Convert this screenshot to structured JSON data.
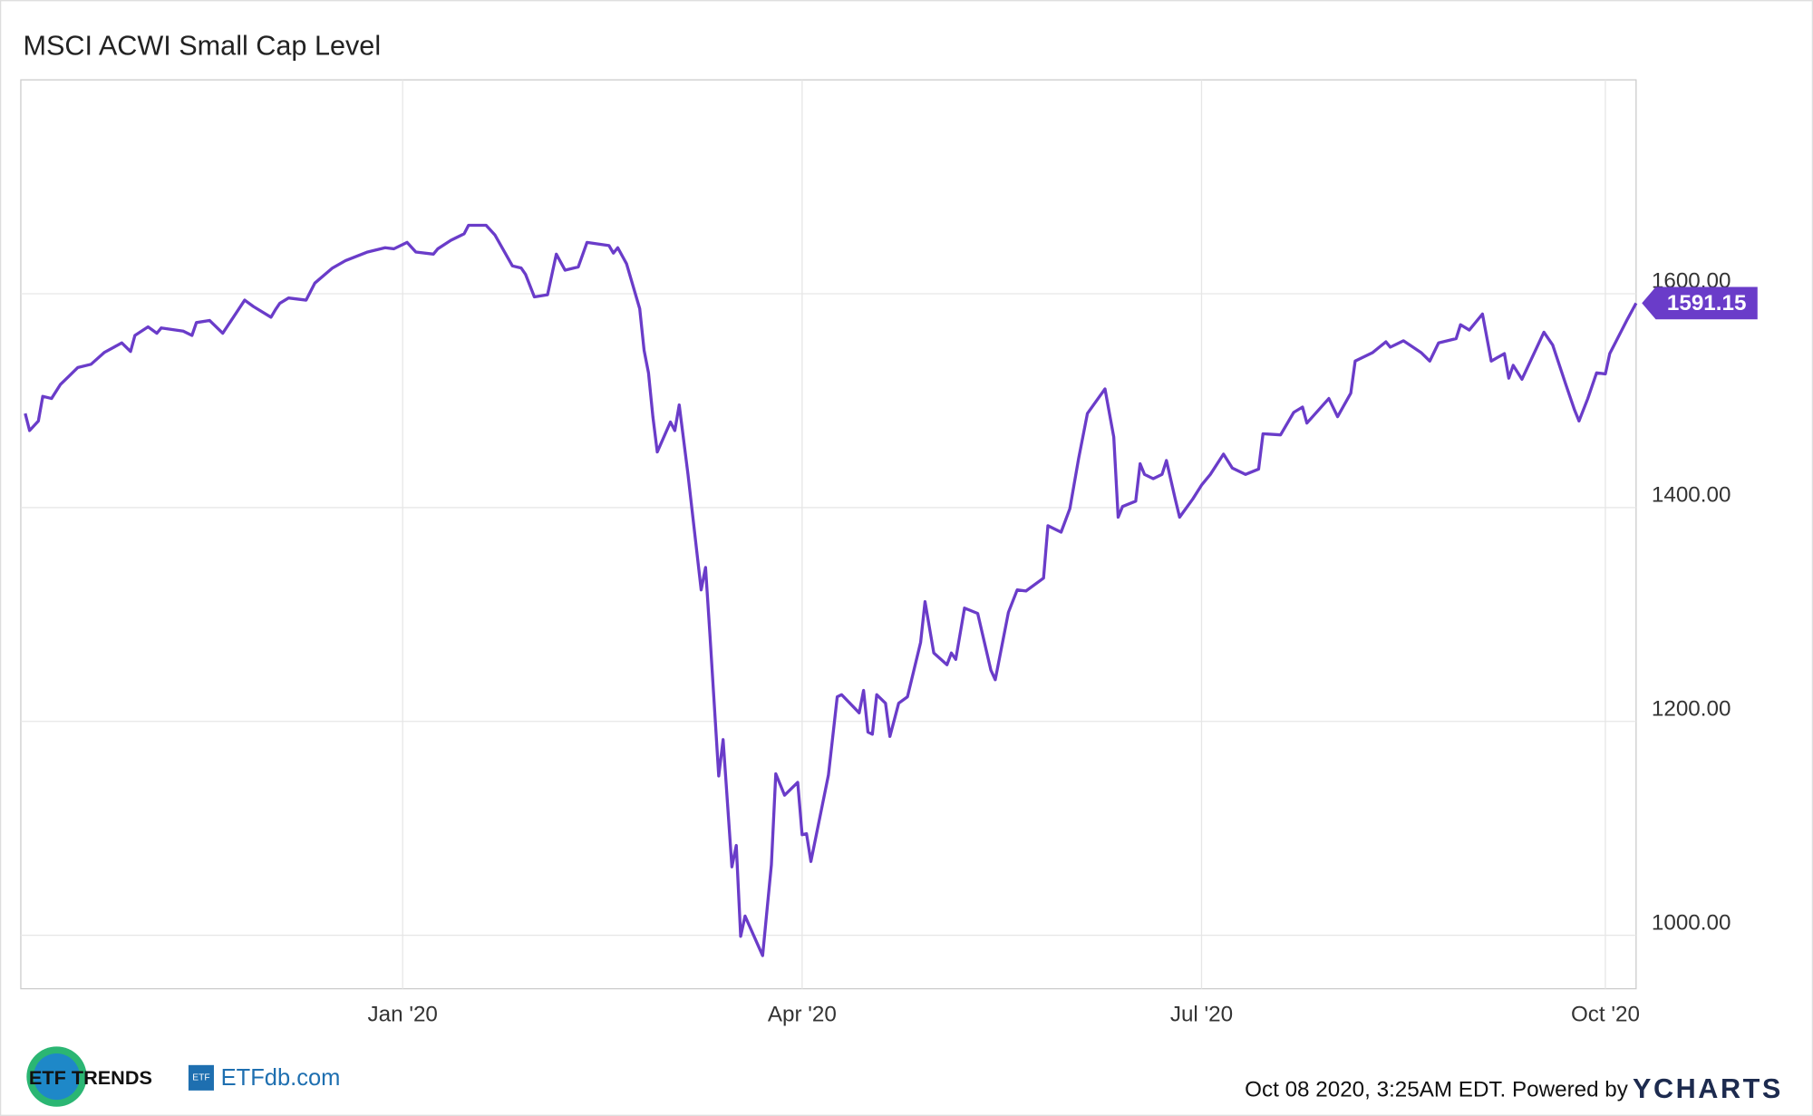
{
  "chart_data": {
    "type": "line",
    "title": "MSCI ACWI Small Cap Level",
    "x": [
      -86,
      -85,
      -83,
      -82,
      -80,
      -78,
      -76,
      -74,
      -71,
      -68,
      -64,
      -62,
      -61,
      -58,
      -56,
      -55,
      -50,
      -48,
      -47,
      -44,
      -41,
      -36,
      -34,
      -30,
      -29,
      -28,
      -26,
      -22,
      -20,
      -16,
      -13,
      -8,
      -4,
      -2,
      1,
      3,
      7,
      8,
      11,
      14,
      15,
      19,
      21,
      25,
      27,
      28,
      30,
      33,
      35,
      37,
      40,
      42,
      47,
      48,
      49,
      51,
      54,
      55,
      56,
      57,
      58,
      61,
      62,
      63,
      65,
      68,
      69,
      70,
      72,
      73,
      75,
      76,
      77,
      78,
      82,
      84,
      85,
      87,
      90,
      91,
      92,
      93,
      97,
      99,
      100,
      104,
      105,
      106,
      107,
      108,
      110,
      111,
      113,
      115,
      118,
      119,
      121,
      124,
      125,
      126,
      128,
      131,
      134,
      135,
      138,
      140,
      142,
      146,
      147,
      150,
      152,
      154,
      156,
      160,
      162,
      163,
      164,
      167,
      168,
      169,
      171,
      173,
      174,
      176,
      177,
      180,
      182,
      184,
      187,
      189,
      192,
      195,
      196,
      200,
      203,
      205,
      206,
      211,
      213,
      216,
      217,
      221,
      224,
      225,
      228,
      232,
      234,
      236,
      240,
      241,
      243,
      246,
      248,
      251,
      252,
      253,
      255,
      260,
      262,
      265,
      267,
      268,
      270,
      272,
      274,
      275,
      276,
      279,
      281
    ],
    "series": [
      {
        "name": "MSCI ACWI Small Cap Level",
        "color": "#6a3cc9",
        "values": [
          1488,
          1472,
          1481,
          1504,
          1502,
          1515,
          1523,
          1531,
          1534,
          1545,
          1554,
          1546,
          1561,
          1569,
          1563,
          1568,
          1565,
          1561,
          1573,
          1575,
          1563,
          1594,
          1588,
          1578,
          1585,
          1591,
          1596,
          1594,
          1610,
          1624,
          1631,
          1639,
          1643,
          1642,
          1648,
          1639,
          1637,
          1642,
          1650,
          1656,
          1664,
          1664,
          1655,
          1626,
          1624,
          1618,
          1597,
          1599,
          1637,
          1622,
          1625,
          1648,
          1645,
          1638,
          1643,
          1628,
          1586,
          1547,
          1526,
          1485,
          1452,
          1480,
          1472,
          1496,
          1431,
          1323,
          1344,
          1281,
          1149,
          1183,
          1064,
          1084,
          999,
          1018,
          981,
          1066,
          1151,
          1131,
          1143,
          1094,
          1095,
          1069,
          1150,
          1223,
          1225,
          1208,
          1229,
          1190,
          1188,
          1225,
          1217,
          1186,
          1217,
          1223,
          1274,
          1312,
          1264,
          1253,
          1264,
          1258,
          1306,
          1301,
          1248,
          1239,
          1302,
          1323,
          1322,
          1334,
          1383,
          1377,
          1399,
          1446,
          1488,
          1511,
          1466,
          1391,
          1401,
          1406,
          1441,
          1431,
          1427,
          1431,
          1444,
          1408,
          1391,
          1408,
          1421,
          1431,
          1450,
          1437,
          1431,
          1436,
          1469,
          1468,
          1489,
          1494,
          1479,
          1502,
          1485,
          1507,
          1537,
          1545,
          1555,
          1550,
          1556,
          1545,
          1537,
          1554,
          1558,
          1571,
          1566,
          1581,
          1537,
          1544,
          1521,
          1533,
          1520,
          1564,
          1552,
          1515,
          1491,
          1481,
          1502,
          1526,
          1525,
          1544,
          1552,
          1576,
          1591.15
        ]
      }
    ],
    "xlim": [
      -87,
      281
    ],
    "xticks": [
      {
        "value": 0,
        "label": "Jan '20"
      },
      {
        "value": 91,
        "label": "Apr '20"
      },
      {
        "value": 182,
        "label": "Jul '20"
      },
      {
        "value": 274,
        "label": "Oct '20"
      }
    ],
    "ylim": [
      950,
      1800
    ],
    "yticks": [
      {
        "value": 1000,
        "label": "1000.00"
      },
      {
        "value": 1200,
        "label": "1200.00"
      },
      {
        "value": 1400,
        "label": "1400.00"
      },
      {
        "value": 1600,
        "label": "1600.00"
      }
    ],
    "grid": true,
    "note": "Oct 08 2020, 3:25AM EDT. Powered by",
    "brand": "YCHARTS",
    "logos": [
      "ETF TRENDS",
      "ETF",
      "ETFdb.com"
    ]
  }
}
